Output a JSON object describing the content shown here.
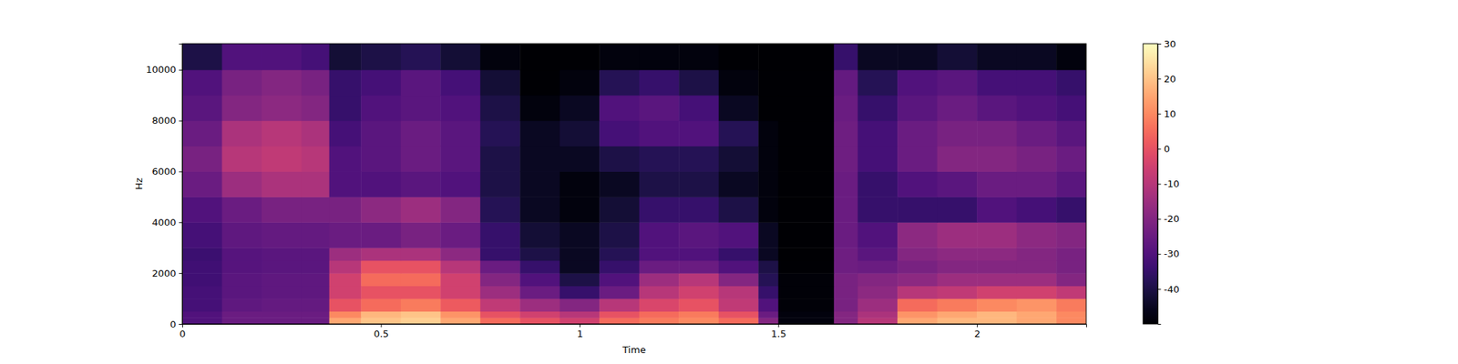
{
  "chart_data": {
    "type": "heatmap",
    "x_label": "Time",
    "y_label": "Hz",
    "color": "magma",
    "xlim": [
      0,
      2.275
    ],
    "ylim": [
      0,
      11025
    ],
    "xticks": [
      0,
      0.5,
      1,
      1.5,
      2
    ],
    "yticks": [
      0,
      2000,
      4000,
      6000,
      8000,
      10000
    ],
    "time_edges": [
      0,
      0.1,
      0.2,
      0.3,
      0.37,
      0.45,
      0.55,
      0.65,
      0.75,
      0.85,
      0.95,
      1.05,
      1.15,
      1.25,
      1.35,
      1.45,
      1.5,
      1.64,
      1.7,
      1.8,
      1.9,
      2.0,
      2.1,
      2.2,
      2.275
    ],
    "frequency_edges": [
      0,
      250,
      500,
      1000,
      1500,
      2000,
      2500,
      3000,
      4000,
      5000,
      6000,
      7000,
      8000,
      9000,
      10000,
      11025
    ],
    "values": [
      [
        -30,
        -25,
        -25,
        -25,
        15,
        20,
        22,
        15,
        5,
        0,
        -5,
        5,
        8,
        10,
        5,
        -20,
        -48,
        -20,
        -10,
        15,
        18,
        18,
        15,
        10
      ],
      [
        -30,
        -25,
        -25,
        -25,
        10,
        18,
        20,
        12,
        0,
        -5,
        -10,
        0,
        5,
        8,
        0,
        -25,
        -48,
        -20,
        -12,
        12,
        15,
        18,
        15,
        10
      ],
      [
        -32,
        -27,
        -26,
        -26,
        0,
        5,
        8,
        2,
        -8,
        -15,
        -20,
        -10,
        -3,
        0,
        -8,
        -30,
        -49,
        -22,
        -15,
        5,
        8,
        10,
        12,
        8
      ],
      [
        -32,
        -28,
        -27,
        -27,
        -5,
        0,
        0,
        -5,
        -15,
        -25,
        -35,
        -25,
        -10,
        -5,
        -10,
        -35,
        -49,
        -22,
        -18,
        -10,
        -8,
        -5,
        -5,
        -8
      ],
      [
        -33,
        -28,
        -27,
        -27,
        -5,
        5,
        5,
        -5,
        -20,
        -30,
        -40,
        -30,
        -15,
        -10,
        -20,
        -38,
        -49,
        -22,
        -20,
        -18,
        -15,
        -15,
        -15,
        -20
      ],
      [
        -33,
        -29,
        -28,
        -28,
        -10,
        0,
        0,
        -10,
        -25,
        -35,
        -45,
        -35,
        -25,
        -25,
        -30,
        -40,
        -50,
        -24,
        -25,
        -22,
        -20,
        -20,
        -20,
        -22
      ],
      [
        -34,
        -29,
        -28,
        -28,
        -15,
        -12,
        -12,
        -18,
        -35,
        -40,
        -45,
        -38,
        -30,
        -30,
        -35,
        -45,
        -50,
        -24,
        -28,
        -20,
        -18,
        -18,
        -20,
        -22
      ],
      [
        -32,
        -27,
        -26,
        -26,
        -25,
        -25,
        -22,
        -25,
        -35,
        -42,
        -45,
        -40,
        -30,
        -28,
        -30,
        -45,
        -50,
        -25,
        -30,
        -18,
        -15,
        -15,
        -18,
        -20
      ],
      [
        -30,
        -25,
        -22,
        -22,
        -22,
        -18,
        -15,
        -20,
        -38,
        -45,
        -48,
        -42,
        -35,
        -35,
        -40,
        -48,
        -50,
        -25,
        -35,
        -35,
        -35,
        -30,
        -32,
        -35
      ],
      [
        -25,
        -15,
        -12,
        -12,
        -30,
        -30,
        -28,
        -30,
        -40,
        -45,
        -48,
        -45,
        -40,
        -40,
        -45,
        -48,
        -50,
        -25,
        -35,
        -30,
        -28,
        -25,
        -25,
        -28
      ],
      [
        -22,
        -10,
        -8,
        -10,
        -30,
        -28,
        -25,
        -28,
        -40,
        -45,
        -45,
        -40,
        -38,
        -38,
        -42,
        -48,
        -50,
        -24,
        -32,
        -25,
        -20,
        -20,
        -22,
        -25
      ],
      [
        -25,
        -12,
        -10,
        -12,
        -32,
        -28,
        -25,
        -28,
        -38,
        -45,
        -42,
        -32,
        -30,
        -30,
        -38,
        -48,
        -50,
        -24,
        -32,
        -25,
        -22,
        -22,
        -25,
        -28
      ],
      [
        -28,
        -20,
        -18,
        -20,
        -35,
        -30,
        -28,
        -30,
        -40,
        -48,
        -45,
        -30,
        -28,
        -32,
        -45,
        -50,
        -50,
        -25,
        -35,
        -28,
        -25,
        -28,
        -30,
        -32
      ],
      [
        -30,
        -22,
        -20,
        -22,
        -35,
        -32,
        -28,
        -32,
        -42,
        -50,
        -48,
        -38,
        -35,
        -40,
        -48,
        -50,
        -50,
        -26,
        -38,
        -30,
        -28,
        -32,
        -32,
        -35
      ],
      [
        -40,
        -30,
        -30,
        -32,
        -42,
        -40,
        -38,
        -42,
        -48,
        -50,
        -50,
        -48,
        -48,
        -48,
        -50,
        -50,
        -50,
        -35,
        -45,
        -45,
        -42,
        -45,
        -45,
        -48
      ]
    ],
    "colorbar": {
      "range": [
        -50,
        30
      ],
      "ticks": [
        -40,
        -30,
        -20,
        -10,
        0,
        10,
        20,
        30
      ]
    }
  }
}
